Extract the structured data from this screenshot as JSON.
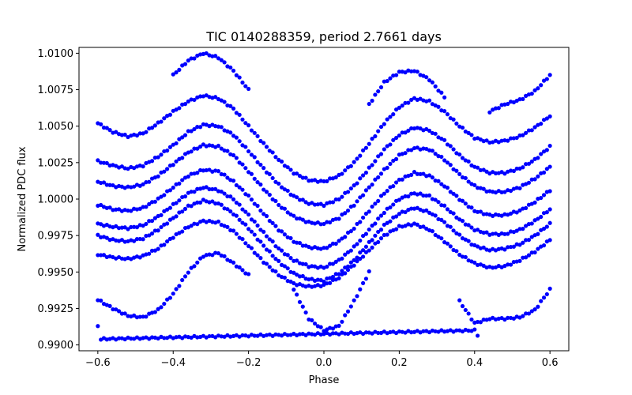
{
  "chart_data": {
    "type": "scatter",
    "title": "TIC 0140288359, period 2.7661 days",
    "xlabel": "Phase",
    "ylabel": "Normalized PDC flux",
    "xlim": [
      -0.65,
      0.65
    ],
    "ylim": [
      0.9896,
      1.0104
    ],
    "xticks": [
      -0.6,
      -0.4,
      -0.2,
      0.0,
      0.2,
      0.4,
      0.6
    ],
    "xtick_labels": [
      "−0.6",
      "−0.4",
      "−0.2",
      "0.0",
      "0.2",
      "0.4",
      "0.6"
    ],
    "yticks": [
      0.99,
      0.9925,
      0.995,
      0.9975,
      1.0,
      1.0025,
      1.005,
      1.0075,
      1.01
    ],
    "ytick_labels": [
      "0.9900",
      "0.9925",
      "0.9950",
      "0.9975",
      "1.0000",
      "1.0025",
      "1.0050",
      "1.0075",
      "1.0100"
    ],
    "grid": false,
    "marker_color": "#0000ff",
    "series": [
      {
        "values": [
          [
            -0.6,
            1.0052
          ],
          [
            -0.56,
            1.0046
          ],
          [
            -0.52,
            1.0043
          ],
          [
            -0.48,
            1.0045
          ],
          [
            -0.44,
            1.0052
          ],
          [
            -0.4,
            1.006
          ],
          [
            -0.36,
            1.0067
          ],
          [
            -0.32,
            1.0071
          ],
          [
            -0.28,
            1.0069
          ],
          [
            -0.24,
            1.0062
          ],
          [
            -0.2,
            1.005
          ],
          [
            -0.16,
            1.0038
          ],
          [
            -0.12,
            1.0027
          ],
          [
            -0.08,
            1.0018
          ],
          [
            -0.04,
            1.0013
          ],
          [
            0.0,
            1.0012
          ],
          [
            0.04,
            1.0016
          ],
          [
            0.08,
            1.0025
          ],
          [
            0.12,
            1.0038
          ],
          [
            0.16,
            1.0052
          ],
          [
            0.2,
            1.0063
          ],
          [
            0.24,
            1.0069
          ],
          [
            0.28,
            1.0067
          ],
          [
            0.32,
            1.006
          ],
          [
            0.36,
            1.005
          ],
          [
            0.4,
            1.0042
          ],
          [
            0.44,
            1.0039
          ],
          [
            0.48,
            1.004
          ],
          [
            0.52,
            1.0043
          ],
          [
            0.56,
            1.0049
          ],
          [
            0.6,
            1.0057
          ]
        ]
      },
      {
        "values": [
          [
            -0.6,
            1.0026
          ],
          [
            -0.56,
            1.0023
          ],
          [
            -0.52,
            1.0021
          ],
          [
            -0.48,
            1.0023
          ],
          [
            -0.44,
            1.0029
          ],
          [
            -0.4,
            1.0037
          ],
          [
            -0.36,
            1.0046
          ],
          [
            -0.32,
            1.0051
          ],
          [
            -0.28,
            1.005
          ],
          [
            -0.24,
            1.0044
          ],
          [
            -0.2,
            1.0033
          ],
          [
            -0.16,
            1.0021
          ],
          [
            -0.12,
            1.001
          ],
          [
            -0.08,
            1.0002
          ],
          [
            -0.04,
            0.9997
          ],
          [
            0.0,
            0.9996
          ],
          [
            0.04,
            1.0
          ],
          [
            0.08,
            1.0009
          ],
          [
            0.12,
            1.0021
          ],
          [
            0.16,
            1.0034
          ],
          [
            0.2,
            1.0044
          ],
          [
            0.24,
            1.0049
          ],
          [
            0.28,
            1.0047
          ],
          [
            0.32,
            1.004
          ],
          [
            0.36,
            1.003
          ],
          [
            0.4,
            1.0022
          ],
          [
            0.44,
            1.0018
          ],
          [
            0.48,
            1.0018
          ],
          [
            0.52,
            1.0021
          ],
          [
            0.56,
            1.0027
          ],
          [
            0.6,
            1.0036
          ]
        ]
      },
      {
        "values": [
          [
            -0.6,
            1.0012
          ],
          [
            -0.56,
            1.0009
          ],
          [
            -0.52,
            1.0008
          ],
          [
            -0.48,
            1.001
          ],
          [
            -0.44,
            1.0016
          ],
          [
            -0.4,
            1.0024
          ],
          [
            -0.36,
            1.0032
          ],
          [
            -0.32,
            1.0037
          ],
          [
            -0.28,
            1.0036
          ],
          [
            -0.24,
            1.003
          ],
          [
            -0.2,
            1.0019
          ],
          [
            -0.16,
            1.0007
          ],
          [
            -0.12,
            0.9996
          ],
          [
            -0.08,
            0.9988
          ],
          [
            -0.04,
            0.9984
          ],
          [
            0.0,
            0.9983
          ],
          [
            0.04,
            0.9987
          ],
          [
            0.08,
            0.9996
          ],
          [
            0.12,
            1.0008
          ],
          [
            0.16,
            1.002
          ],
          [
            0.2,
            1.003
          ],
          [
            0.24,
            1.0035
          ],
          [
            0.28,
            1.0034
          ],
          [
            0.32,
            1.0027
          ],
          [
            0.36,
            1.0017
          ],
          [
            0.4,
            1.0009
          ],
          [
            0.44,
            1.0005
          ],
          [
            0.48,
            1.0005
          ],
          [
            0.52,
            1.0008
          ],
          [
            0.56,
            1.0014
          ],
          [
            0.6,
            1.0022
          ]
        ]
      },
      {
        "values": [
          [
            -0.6,
            0.9996
          ],
          [
            -0.56,
            0.9993
          ],
          [
            -0.52,
            0.9992
          ],
          [
            -0.48,
            0.9994
          ],
          [
            -0.44,
            1.0
          ],
          [
            -0.4,
            1.0008
          ],
          [
            -0.36,
            1.0016
          ],
          [
            -0.32,
            1.002
          ],
          [
            -0.28,
            1.0019
          ],
          [
            -0.24,
            1.0012
          ],
          [
            -0.2,
            1.0002
          ],
          [
            -0.16,
            0.999
          ],
          [
            -0.12,
            0.9979
          ],
          [
            -0.08,
            0.9971
          ],
          [
            -0.04,
            0.9967
          ],
          [
            0.0,
            0.9966
          ],
          [
            0.04,
            0.9971
          ],
          [
            0.08,
            0.998
          ],
          [
            0.12,
            0.9992
          ],
          [
            0.16,
            1.0004
          ],
          [
            0.2,
            1.0013
          ],
          [
            0.24,
            1.0018
          ],
          [
            0.28,
            1.0016
          ],
          [
            0.32,
            1.0009
          ],
          [
            0.36,
            1.0
          ],
          [
            0.4,
            0.9992
          ],
          [
            0.44,
            0.9989
          ],
          [
            0.48,
            0.9989
          ],
          [
            0.52,
            0.9992
          ],
          [
            0.56,
            0.9998
          ],
          [
            0.6,
            1.0006
          ]
        ]
      },
      {
        "values": [
          [
            -0.6,
            0.9983
          ],
          [
            -0.56,
            0.9981
          ],
          [
            -0.52,
            0.998
          ],
          [
            -0.48,
            0.9982
          ],
          [
            -0.44,
            0.9988
          ],
          [
            -0.4,
            0.9996
          ],
          [
            -0.36,
            1.0004
          ],
          [
            -0.32,
            1.0008
          ],
          [
            -0.28,
            1.0006
          ],
          [
            -0.24,
            1.0
          ],
          [
            -0.2,
            0.9989
          ],
          [
            -0.16,
            0.9977
          ],
          [
            -0.12,
            0.9966
          ],
          [
            -0.08,
            0.9958
          ],
          [
            -0.04,
            0.9954
          ],
          [
            0.0,
            0.9953
          ],
          [
            0.04,
            0.9958
          ],
          [
            0.08,
            0.9967
          ],
          [
            0.12,
            0.9979
          ],
          [
            0.16,
            0.9991
          ],
          [
            0.2,
            1.0
          ],
          [
            0.24,
            1.0004
          ],
          [
            0.28,
            1.0002
          ],
          [
            0.32,
            0.9995
          ],
          [
            0.36,
            0.9986
          ],
          [
            0.4,
            0.9979
          ],
          [
            0.44,
            0.9976
          ],
          [
            0.48,
            0.9976
          ],
          [
            0.52,
            0.9979
          ],
          [
            0.56,
            0.9985
          ],
          [
            0.6,
            0.9993
          ]
        ]
      },
      {
        "values": [
          [
            -0.6,
            0.9975
          ],
          [
            -0.56,
            0.9972
          ],
          [
            -0.52,
            0.9971
          ],
          [
            -0.48,
            0.9973
          ],
          [
            -0.44,
            0.9979
          ],
          [
            -0.4,
            0.9987
          ],
          [
            -0.36,
            0.9995
          ],
          [
            -0.32,
            0.9999
          ],
          [
            -0.28,
            0.9997
          ],
          [
            -0.24,
            0.999
          ],
          [
            -0.2,
            0.998
          ],
          [
            -0.16,
            0.9968
          ],
          [
            -0.12,
            0.9957
          ],
          [
            -0.08,
            0.9949
          ],
          [
            -0.04,
            0.9945
          ],
          [
            0.0,
            0.9944
          ],
          [
            0.04,
            0.9949
          ],
          [
            0.08,
            0.9958
          ],
          [
            0.12,
            0.997
          ],
          [
            0.16,
            0.9982
          ],
          [
            0.2,
            0.999
          ],
          [
            0.24,
            0.9994
          ],
          [
            0.28,
            0.9991
          ],
          [
            0.32,
            0.9984
          ],
          [
            0.36,
            0.9975
          ],
          [
            0.4,
            0.9968
          ],
          [
            0.44,
            0.9965
          ],
          [
            0.48,
            0.9966
          ],
          [
            0.52,
            0.9969
          ],
          [
            0.56,
            0.9975
          ],
          [
            0.6,
            0.9983
          ]
        ]
      },
      {
        "values": [
          [
            -0.6,
            0.9962
          ],
          [
            -0.56,
            0.996
          ],
          [
            -0.52,
            0.9959
          ],
          [
            -0.48,
            0.9961
          ],
          [
            -0.44,
            0.9966
          ],
          [
            -0.4,
            0.9974
          ],
          [
            -0.36,
            0.9981
          ],
          [
            -0.32,
            0.9985
          ],
          [
            -0.28,
            0.9984
          ],
          [
            -0.24,
            0.9978
          ],
          [
            -0.2,
            0.9968
          ],
          [
            -0.16,
            0.9957
          ],
          [
            -0.12,
            0.9948
          ],
          [
            -0.08,
            0.9942
          ],
          [
            -0.04,
            0.994
          ],
          [
            0.0,
            0.9941
          ],
          [
            0.04,
            0.9946
          ],
          [
            0.08,
            0.9955
          ],
          [
            0.12,
            0.9965
          ],
          [
            0.16,
            0.9975
          ],
          [
            0.2,
            0.9981
          ],
          [
            0.24,
            0.9983
          ],
          [
            0.28,
            0.9979
          ],
          [
            0.32,
            0.9971
          ],
          [
            0.36,
            0.9962
          ],
          [
            0.4,
            0.9956
          ],
          [
            0.44,
            0.9953
          ],
          [
            0.48,
            0.9954
          ],
          [
            0.52,
            0.9958
          ],
          [
            0.56,
            0.9964
          ],
          [
            0.6,
            0.9972
          ]
        ]
      },
      {
        "values": [
          [
            -0.6,
            0.9931
          ],
          [
            -0.56,
            0.9925
          ],
          [
            -0.52,
            0.992
          ],
          [
            -0.48,
            0.9919
          ],
          [
            -0.44,
            0.9924
          ],
          [
            -0.4,
            0.9935
          ],
          [
            -0.36,
            0.995
          ],
          [
            -0.32,
            0.9961
          ],
          [
            -0.28,
            0.9963
          ],
          [
            -0.24,
            0.9956
          ],
          [
            -0.2,
            0.9948
          ]
        ]
      },
      {
        "values": [
          [
            -0.4,
            1.0085
          ],
          [
            -0.36,
            1.0095
          ],
          [
            -0.32,
            1.01
          ],
          [
            -0.28,
            1.0097
          ],
          [
            -0.24,
            1.0088
          ],
          [
            -0.2,
            1.0075
          ]
        ]
      },
      {
        "values": [
          [
            0.12,
            1.0065
          ],
          [
            0.16,
            1.008
          ],
          [
            0.2,
            1.0087
          ],
          [
            0.24,
            1.0088
          ],
          [
            0.28,
            1.0082
          ],
          [
            0.32,
            1.007
          ]
        ]
      },
      {
        "values": [
          [
            0.44,
            1.006
          ],
          [
            0.48,
            1.0065
          ],
          [
            0.52,
            1.0068
          ],
          [
            0.56,
            1.0074
          ],
          [
            0.6,
            1.0085
          ]
        ]
      },
      {
        "values": [
          [
            -0.08,
            0.9938
          ],
          [
            -0.04,
            0.9918
          ],
          [
            0.0,
            0.991
          ],
          [
            0.04,
            0.9913
          ],
          [
            0.08,
            0.993
          ],
          [
            0.12,
            0.995
          ]
        ]
      },
      {
        "values": [
          [
            0.36,
            0.993
          ],
          [
            0.4,
            0.9915
          ],
          [
            0.44,
            0.9918
          ],
          [
            0.48,
            0.9918
          ],
          [
            0.52,
            0.9919
          ],
          [
            0.56,
            0.9924
          ],
          [
            0.6,
            0.9938
          ]
        ]
      },
      {
        "values": [
          [
            -0.6,
            0.9913
          ],
          [
            -0.595,
            0.9904
          ],
          [
            0.415,
            0.9904
          ],
          [
            0.4,
            0.991
          ]
        ]
      }
    ]
  }
}
